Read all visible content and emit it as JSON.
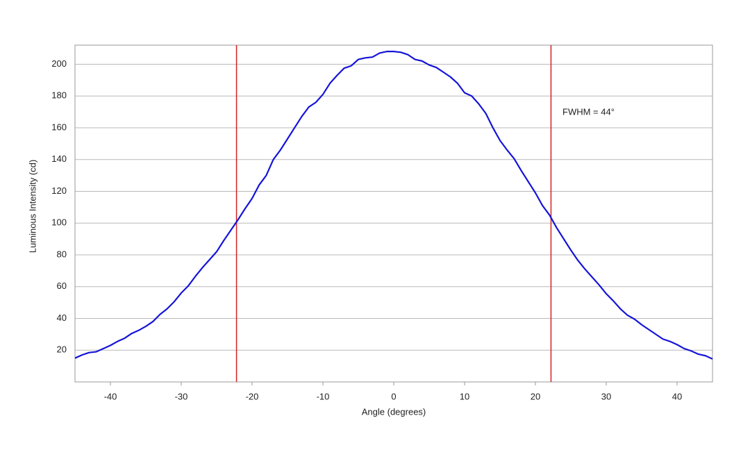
{
  "chart_data": {
    "type": "line",
    "xlabel": "Angle (degrees)",
    "ylabel": "Luminous Intensity (cd)",
    "annotation": "FWHM = 44°",
    "x": [
      -45,
      -44,
      -43,
      -42,
      -41,
      -40,
      -39,
      -38,
      -37,
      -36,
      -35,
      -34,
      -33,
      -32,
      -31,
      -30,
      -29,
      -28,
      -27,
      -26,
      -25,
      -24,
      -23,
      -22,
      -21,
      -20,
      -19,
      -18,
      -17,
      -16,
      -15,
      -14,
      -13,
      -12,
      -11,
      -10,
      -9,
      -8,
      -7,
      -6,
      -5,
      -4,
      -3,
      -2,
      -1,
      0,
      1,
      2,
      3,
      4,
      5,
      6,
      7,
      8,
      9,
      10,
      11,
      12,
      13,
      14,
      15,
      16,
      17,
      18,
      19,
      20,
      21,
      22,
      23,
      24,
      25,
      26,
      27,
      28,
      29,
      30,
      31,
      32,
      33,
      34,
      35,
      36,
      37,
      38,
      39,
      40,
      41,
      42,
      43,
      44,
      45
    ],
    "series": [
      {
        "name": "Luminous Intensity",
        "color": "#1414d8",
        "values": [
          15,
          17,
          18.5,
          19,
          21,
          23,
          25.5,
          27.5,
          30.5,
          32.5,
          35,
          38,
          42.5,
          46,
          50.5,
          56,
          60.5,
          66.5,
          72,
          77,
          82,
          89,
          95.5,
          102,
          109,
          115.5,
          124,
          130,
          140,
          146,
          153,
          160,
          167,
          173,
          176,
          181,
          188,
          193,
          197.5,
          199,
          203,
          204,
          204.5,
          207,
          208,
          208,
          207.5,
          206,
          203,
          202,
          199.5,
          198,
          195,
          192,
          188,
          182,
          180,
          175,
          169,
          160,
          152,
          146,
          140.5,
          133,
          126,
          119,
          111,
          105,
          97,
          90,
          83,
          76.5,
          71,
          66,
          61,
          55.5,
          51,
          46,
          42,
          39.5,
          36,
          33,
          30,
          27,
          25.5,
          23.5,
          21,
          19.5,
          17.5,
          16.5,
          14.5
        ]
      }
    ],
    "vlines": [
      -22.2,
      22.2
    ],
    "vline_color": "#d42020",
    "xlim": [
      -45,
      45
    ],
    "ylim": [
      0,
      212
    ],
    "xticks": [
      -40,
      -30,
      -20,
      -10,
      0,
      10,
      20,
      30,
      40
    ],
    "yticks": [
      20,
      40,
      60,
      80,
      100,
      120,
      140,
      160,
      180,
      200
    ],
    "grid": true
  }
}
